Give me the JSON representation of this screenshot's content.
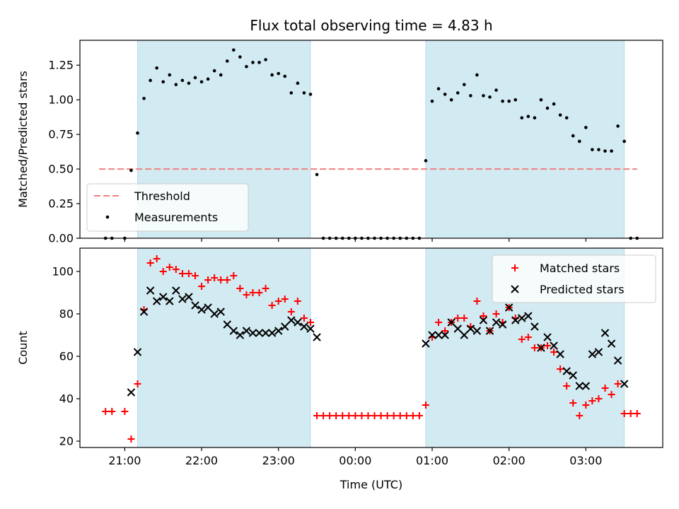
{
  "chart_data": [
    {
      "type": "scatter",
      "title": "Flux total observing time = 4.83 h",
      "xlabel": "",
      "ylabel": "Matched/Predicted stars",
      "ylim": [
        0,
        1.43
      ],
      "yticks": [
        0.0,
        0.25,
        0.5,
        0.75,
        1.0,
        1.25
      ],
      "ytick_labels": [
        "0.00",
        "0.25",
        "0.50",
        "0.75",
        "1.00",
        "1.25"
      ],
      "xlim": [
        "20:25",
        "04:00"
      ],
      "xticks": [
        "21:00",
        "22:00",
        "23:00",
        "00:00",
        "01:00",
        "02:00",
        "03:00"
      ],
      "shaded_intervals": [
        [
          "21:10",
          "23:25"
        ],
        [
          "00:55",
          "03:30"
        ]
      ],
      "shade_color": "#add8e6",
      "threshold": {
        "name": "Threshold",
        "value": 0.5,
        "x_range": [
          "20:40",
          "03:40"
        ],
        "color": "#f08080"
      },
      "series": [
        {
          "name": "Measurements",
          "color": "#000000",
          "points": [
            [
              "20:45",
              0.0
            ],
            [
              "20:50",
              0.0
            ],
            [
              "21:00",
              0.0
            ],
            [
              "21:05",
              0.49
            ],
            [
              "21:10",
              0.76
            ],
            [
              "21:15",
              1.01
            ],
            [
              "21:20",
              1.14
            ],
            [
              "21:25",
              1.23
            ],
            [
              "21:30",
              1.13
            ],
            [
              "21:35",
              1.18
            ],
            [
              "21:40",
              1.11
            ],
            [
              "21:45",
              1.14
            ],
            [
              "21:50",
              1.12
            ],
            [
              "21:55",
              1.16
            ],
            [
              "22:00",
              1.13
            ],
            [
              "22:05",
              1.15
            ],
            [
              "22:10",
              1.21
            ],
            [
              "22:15",
              1.18
            ],
            [
              "22:20",
              1.28
            ],
            [
              "22:25",
              1.36
            ],
            [
              "22:30",
              1.31
            ],
            [
              "22:35",
              1.24
            ],
            [
              "22:40",
              1.27
            ],
            [
              "22:45",
              1.27
            ],
            [
              "22:50",
              1.29
            ],
            [
              "22:55",
              1.18
            ],
            [
              "23:00",
              1.19
            ],
            [
              "23:05",
              1.17
            ],
            [
              "23:10",
              1.05
            ],
            [
              "23:15",
              1.12
            ],
            [
              "23:20",
              1.05
            ],
            [
              "23:25",
              1.04
            ],
            [
              "23:30",
              0.46
            ],
            [
              "23:35",
              0.0
            ],
            [
              "23:40",
              0.0
            ],
            [
              "23:45",
              0.0
            ],
            [
              "23:50",
              0.0
            ],
            [
              "23:55",
              0.0
            ],
            [
              "00:00",
              0.0
            ],
            [
              "00:05",
              0.0
            ],
            [
              "00:10",
              0.0
            ],
            [
              "00:15",
              0.0
            ],
            [
              "00:20",
              0.0
            ],
            [
              "00:25",
              0.0
            ],
            [
              "00:30",
              0.0
            ],
            [
              "00:35",
              0.0
            ],
            [
              "00:40",
              0.0
            ],
            [
              "00:45",
              0.0
            ],
            [
              "00:50",
              0.0
            ],
            [
              "00:55",
              0.56
            ],
            [
              "01:00",
              0.99
            ],
            [
              "01:05",
              1.08
            ],
            [
              "01:10",
              1.04
            ],
            [
              "01:15",
              1.0
            ],
            [
              "01:20",
              1.05
            ],
            [
              "01:25",
              1.11
            ],
            [
              "01:30",
              1.03
            ],
            [
              "01:35",
              1.18
            ],
            [
              "01:40",
              1.03
            ],
            [
              "01:45",
              1.02
            ],
            [
              "01:50",
              1.07
            ],
            [
              "01:55",
              0.99
            ],
            [
              "02:00",
              0.99
            ],
            [
              "02:05",
              1.0
            ],
            [
              "02:10",
              0.87
            ],
            [
              "02:15",
              0.88
            ],
            [
              "02:20",
              0.87
            ],
            [
              "02:25",
              1.0
            ],
            [
              "02:30",
              0.94
            ],
            [
              "02:35",
              0.97
            ],
            [
              "02:40",
              0.89
            ],
            [
              "02:45",
              0.87
            ],
            [
              "02:50",
              0.74
            ],
            [
              "02:55",
              0.7
            ],
            [
              "03:00",
              0.8
            ],
            [
              "03:05",
              0.64
            ],
            [
              "03:10",
              0.64
            ],
            [
              "03:15",
              0.63
            ],
            [
              "03:20",
              0.63
            ],
            [
              "03:25",
              0.81
            ],
            [
              "03:30",
              0.7
            ],
            [
              "03:35",
              0.0
            ],
            [
              "03:40",
              0.0
            ]
          ]
        }
      ],
      "legend": {
        "position": "lower-left",
        "entries": [
          "Threshold",
          "Measurements"
        ]
      }
    },
    {
      "type": "scatter",
      "title": "",
      "xlabel": "Time (UTC)",
      "ylabel": "Count",
      "ylim": [
        17,
        111
      ],
      "yticks": [
        20,
        40,
        60,
        80,
        100
      ],
      "ytick_labels": [
        "20",
        "40",
        "60",
        "80",
        "100"
      ],
      "xlim": [
        "20:25",
        "04:00"
      ],
      "xticks": [
        "21:00",
        "22:00",
        "23:00",
        "00:00",
        "01:00",
        "02:00",
        "03:00"
      ],
      "xtick_labels": [
        "21:00",
        "22:00",
        "23:00",
        "00:00",
        "01:00",
        "02:00",
        "03:00"
      ],
      "shaded_intervals": [
        [
          "21:10",
          "23:25"
        ],
        [
          "00:55",
          "03:30"
        ]
      ],
      "shade_color": "#add8e6",
      "series": [
        {
          "name": "Matched stars",
          "marker": "plus",
          "color": "#ff0000",
          "points": [
            [
              "20:45",
              34
            ],
            [
              "20:50",
              34
            ],
            [
              "21:00",
              34
            ],
            [
              "21:05",
              21
            ],
            [
              "21:10",
              47
            ],
            [
              "21:15",
              82
            ],
            [
              "21:20",
              104
            ],
            [
              "21:25",
              106
            ],
            [
              "21:30",
              100
            ],
            [
              "21:35",
              102
            ],
            [
              "21:40",
              101
            ],
            [
              "21:45",
              99
            ],
            [
              "21:50",
              99
            ],
            [
              "21:55",
              98
            ],
            [
              "22:00",
              93
            ],
            [
              "22:05",
              96
            ],
            [
              "22:10",
              97
            ],
            [
              "22:15",
              96
            ],
            [
              "22:20",
              96
            ],
            [
              "22:25",
              98
            ],
            [
              "22:30",
              92
            ],
            [
              "22:35",
              89
            ],
            [
              "22:40",
              90
            ],
            [
              "22:45",
              90
            ],
            [
              "22:50",
              92
            ],
            [
              "22:55",
              84
            ],
            [
              "23:00",
              86
            ],
            [
              "23:05",
              87
            ],
            [
              "23:10",
              81
            ],
            [
              "23:15",
              86
            ],
            [
              "23:20",
              78
            ],
            [
              "23:25",
              76
            ],
            [
              "23:30",
              32
            ],
            [
              "23:35",
              32
            ],
            [
              "23:40",
              32
            ],
            [
              "23:45",
              32
            ],
            [
              "23:50",
              32
            ],
            [
              "23:55",
              32
            ],
            [
              "00:00",
              32
            ],
            [
              "00:05",
              32
            ],
            [
              "00:10",
              32
            ],
            [
              "00:15",
              32
            ],
            [
              "00:20",
              32
            ],
            [
              "00:25",
              32
            ],
            [
              "00:30",
              32
            ],
            [
              "00:35",
              32
            ],
            [
              "00:40",
              32
            ],
            [
              "00:45",
              32
            ],
            [
              "00:50",
              32
            ],
            [
              "00:55",
              37
            ],
            [
              "01:00",
              69
            ],
            [
              "01:05",
              76
            ],
            [
              "01:10",
              72
            ],
            [
              "01:15",
              76
            ],
            [
              "01:20",
              78
            ],
            [
              "01:25",
              78
            ],
            [
              "01:30",
              74
            ],
            [
              "01:35",
              86
            ],
            [
              "01:40",
              79
            ],
            [
              "01:45",
              72
            ],
            [
              "01:50",
              80
            ],
            [
              "01:55",
              76
            ],
            [
              "02:00",
              83
            ],
            [
              "02:05",
              78
            ],
            [
              "02:10",
              68
            ],
            [
              "02:15",
              69
            ],
            [
              "02:20",
              64
            ],
            [
              "02:25",
              64
            ],
            [
              "02:30",
              65
            ],
            [
              "02:35",
              62
            ],
            [
              "02:40",
              54
            ],
            [
              "02:45",
              46
            ],
            [
              "02:50",
              38
            ],
            [
              "02:55",
              32
            ],
            [
              "03:00",
              37
            ],
            [
              "03:05",
              39
            ],
            [
              "03:10",
              40
            ],
            [
              "03:15",
              45
            ],
            [
              "03:20",
              42
            ],
            [
              "03:25",
              47
            ],
            [
              "03:30",
              33
            ],
            [
              "03:35",
              33
            ],
            [
              "03:40",
              33
            ]
          ]
        },
        {
          "name": "Predicted stars",
          "marker": "x",
          "color": "#000000",
          "points": [
            [
              "21:05",
              43
            ],
            [
              "21:10",
              62
            ],
            [
              "21:15",
              81
            ],
            [
              "21:20",
              91
            ],
            [
              "21:25",
              86
            ],
            [
              "21:30",
              88
            ],
            [
              "21:35",
              86
            ],
            [
              "21:40",
              91
            ],
            [
              "21:45",
              87
            ],
            [
              "21:50",
              88
            ],
            [
              "21:55",
              84
            ],
            [
              "22:00",
              82
            ],
            [
              "22:05",
              83
            ],
            [
              "22:10",
              80
            ],
            [
              "22:15",
              81
            ],
            [
              "22:20",
              75
            ],
            [
              "22:25",
              72
            ],
            [
              "22:30",
              70
            ],
            [
              "22:35",
              72
            ],
            [
              "22:40",
              71
            ],
            [
              "22:45",
              71
            ],
            [
              "22:50",
              71
            ],
            [
              "22:55",
              71
            ],
            [
              "23:00",
              72
            ],
            [
              "23:05",
              74
            ],
            [
              "23:10",
              77
            ],
            [
              "23:15",
              76
            ],
            [
              "23:20",
              74
            ],
            [
              "23:25",
              73
            ],
            [
              "23:30",
              69
            ],
            [
              "00:55",
              66
            ],
            [
              "01:00",
              70
            ],
            [
              "01:05",
              70
            ],
            [
              "01:10",
              70
            ],
            [
              "01:15",
              76
            ],
            [
              "01:20",
              73
            ],
            [
              "01:25",
              70
            ],
            [
              "01:30",
              73
            ],
            [
              "01:35",
              72
            ],
            [
              "01:40",
              77
            ],
            [
              "01:45",
              72
            ],
            [
              "01:50",
              76
            ],
            [
              "01:55",
              75
            ],
            [
              "02:00",
              83
            ],
            [
              "02:05",
              77
            ],
            [
              "02:10",
              78
            ],
            [
              "02:15",
              79
            ],
            [
              "02:20",
              74
            ],
            [
              "02:25",
              64
            ],
            [
              "02:30",
              69
            ],
            [
              "02:35",
              65
            ],
            [
              "02:40",
              61
            ],
            [
              "02:45",
              53
            ],
            [
              "02:50",
              51
            ],
            [
              "02:55",
              46
            ],
            [
              "03:00",
              46
            ],
            [
              "03:05",
              61
            ],
            [
              "03:10",
              62
            ],
            [
              "03:15",
              71
            ],
            [
              "03:20",
              66
            ],
            [
              "03:25",
              58
            ],
            [
              "03:30",
              47
            ]
          ]
        }
      ],
      "legend": {
        "position": "upper-right",
        "entries": [
          "Matched stars",
          "Predicted stars"
        ]
      }
    }
  ]
}
